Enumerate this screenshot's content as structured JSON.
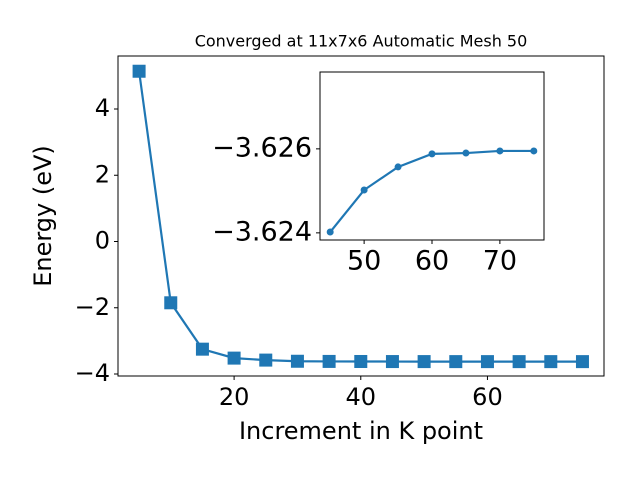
{
  "chart_data": [
    {
      "type": "line",
      "title": "Converged at 11x7x6 Automatic Mesh 50",
      "xlabel": "Increment in K point",
      "ylabel": "Energy (eV)",
      "x": [
        5,
        10,
        15,
        20,
        25,
        30,
        35,
        40,
        45,
        50,
        55,
        60,
        65,
        70,
        75
      ],
      "series": [
        {
          "color": "#1f77b4",
          "marker": "square",
          "values": [
            5.14,
            -1.85,
            -3.25,
            -3.52,
            -3.58,
            -3.615,
            -3.62,
            -3.622,
            -3.62402,
            -3.62502,
            -3.62557,
            -3.62588,
            -3.6259,
            -3.62595,
            -3.62595
          ]
        }
      ],
      "xlim": [
        1.67,
        78.4
      ],
      "ylim": [
        -4.06,
        5.6
      ],
      "xticks": [
        20,
        40,
        60
      ],
      "yticks": [
        {
          "value": -4,
          "label": "−4"
        },
        {
          "value": -2,
          "label": "−2"
        },
        0,
        2,
        4
      ]
    },
    {
      "type": "line",
      "x": [
        45,
        50,
        55,
        60,
        65,
        70,
        75
      ],
      "series": [
        {
          "color": "#1f77b4",
          "marker": "circle",
          "values": [
            -3.62402,
            -3.62502,
            -3.62557,
            -3.62588,
            -3.6259,
            -3.62595,
            -3.62595
          ]
        }
      ],
      "xlim": [
        43.5,
        76.5
      ],
      "ylim": [
        -3.62383,
        -3.62783
      ],
      "xticks": [
        50,
        60,
        70
      ],
      "yticks": [
        {
          "value": -3.626,
          "label": "−3.626"
        },
        {
          "value": -3.624,
          "label": "−3.624"
        }
      ]
    }
  ]
}
